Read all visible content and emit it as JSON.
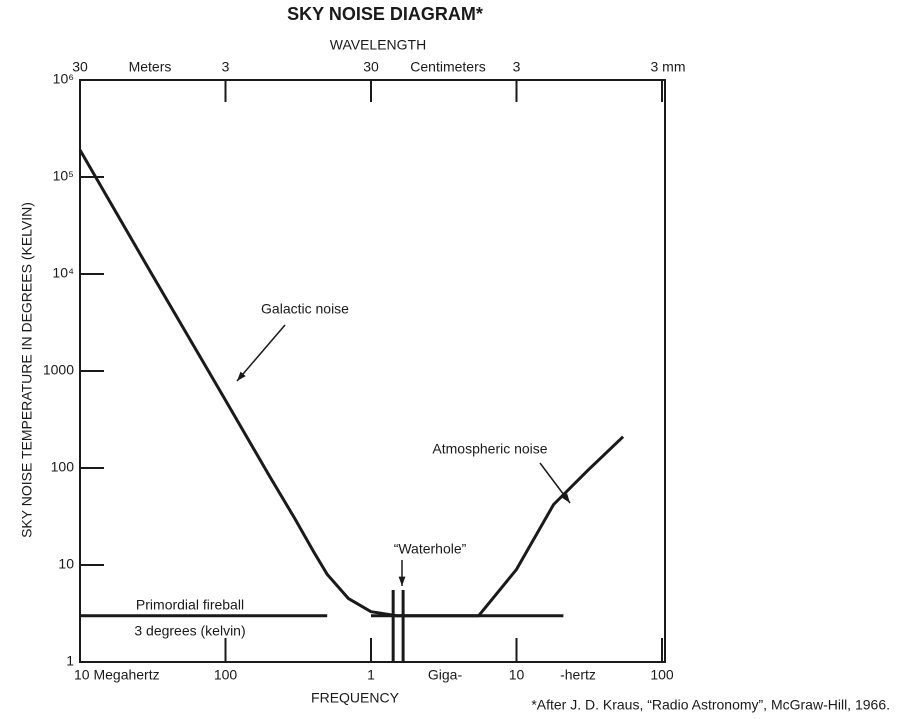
{
  "chart_data": {
    "type": "line",
    "title": "SKY NOISE DIAGRAM*",
    "x2label": "WAVELENGTH",
    "xlabel": "FREQUENCY",
    "ylabel": "SKY NOISE TEMPERATURE IN DEGREES (KELVIN)",
    "footnote": "*After J. D. Kraus, “Radio Astronomy”, McGraw-Hill, 1966.",
    "log_x": true,
    "log_y": true,
    "xlim": [
      10,
      100000
    ],
    "xticks": [
      {
        "value": 10,
        "label": "10 Megahertz"
      },
      100,
      {
        "value": 1000,
        "label": "1"
      },
      {
        "value": 10000,
        "label": "10"
      },
      {
        "value": 100000,
        "label": "100"
      }
    ],
    "x_unit_labels": [
      "Giga-",
      "-hertz"
    ],
    "x2lim": [
      30,
      0.003
    ],
    "x2ticks": [
      30,
      3,
      {
        "value": 0.3,
        "label": "30"
      },
      {
        "value": 0.03,
        "label": "3"
      },
      {
        "value": 0.003,
        "label": "3 mm"
      }
    ],
    "x2_unit_labels": [
      "Meters",
      "Centimeters"
    ],
    "ylim": [
      1,
      1000000
    ],
    "yticks": [
      1,
      10,
      100,
      1000,
      {
        "value": 10000,
        "label": "10⁴"
      },
      {
        "value": 100000,
        "label": "10⁵"
      },
      {
        "value": 1000000,
        "label": "10⁶"
      }
    ],
    "series": [
      {
        "name": "Galactic noise",
        "color": "#1a1a1a",
        "x": [
          10,
          30,
          100,
          200,
          300,
          400,
          500,
          700,
          1000,
          1500
        ],
        "values": [
          190000,
          11000,
          500,
          83,
          30,
          14,
          8,
          4.5,
          3.3,
          3
        ]
      },
      {
        "name": "Atmospheric noise",
        "color": "#1a1a1a",
        "x": [
          1500,
          5500,
          10000,
          18000,
          31000,
          54000
        ],
        "values": [
          3,
          3,
          9,
          42,
          95,
          210
        ]
      },
      {
        "name": "Primordial fireball",
        "sublabel": "3 degrees (kelvin)",
        "color": "#1a1a1a",
        "x": [
          10,
          500,
          700,
          1000,
          21000
        ],
        "values": [
          3,
          3,
          null,
          3,
          3
        ]
      }
    ],
    "waterhole": {
      "label": "“Waterhole”",
      "x": [
        1420,
        1662
      ]
    }
  }
}
